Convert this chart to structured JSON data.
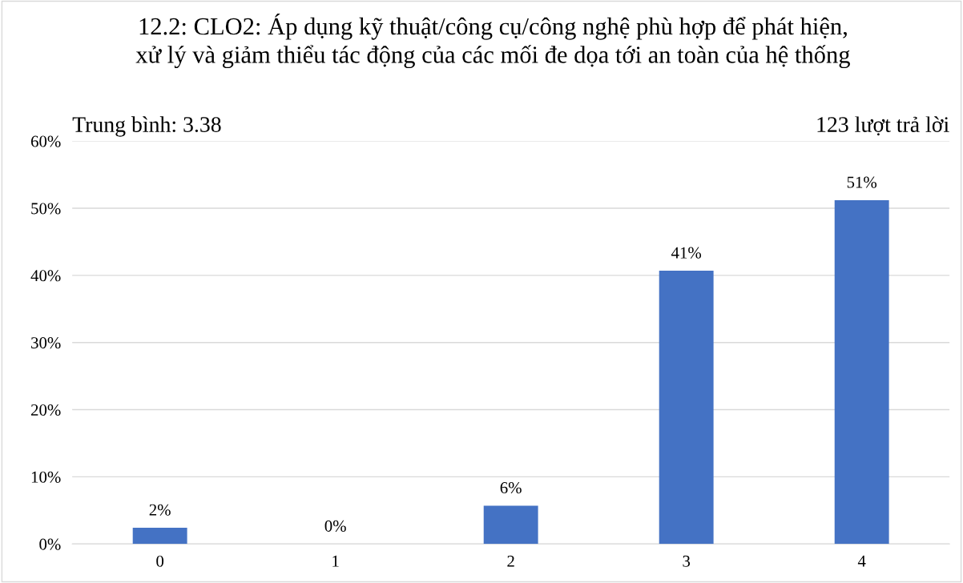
{
  "chart_data": {
    "type": "bar",
    "title": "12.2: CLO2: Áp dụng kỹ thuật/công cụ/công nghệ phù hợp để phát hiện,\nxử lý và giảm thiểu tác động của các mối đe dọa tới an toàn của hệ thống",
    "categories": [
      "0",
      "1",
      "2",
      "3",
      "4"
    ],
    "values": [
      2.4,
      0,
      5.7,
      40.7,
      51.2
    ],
    "value_labels": [
      "2%",
      "0%",
      "6%",
      "41%",
      "51%"
    ],
    "color": "#4472c4",
    "ylim": [
      0,
      60
    ],
    "yticks": [
      {
        "value": 0,
        "label": "0%"
      },
      {
        "value": 10,
        "label": "10%"
      },
      {
        "value": 20,
        "label": "20%"
      },
      {
        "value": 30,
        "label": "30%"
      },
      {
        "value": 40,
        "label": "40%"
      },
      {
        "value": 50,
        "label": "50%"
      },
      {
        "value": 60,
        "label": "60%"
      }
    ],
    "grid": "y",
    "legend": false,
    "annotations": [
      "Trung bình: 3.38",
      "123 lượt trả lời"
    ]
  }
}
